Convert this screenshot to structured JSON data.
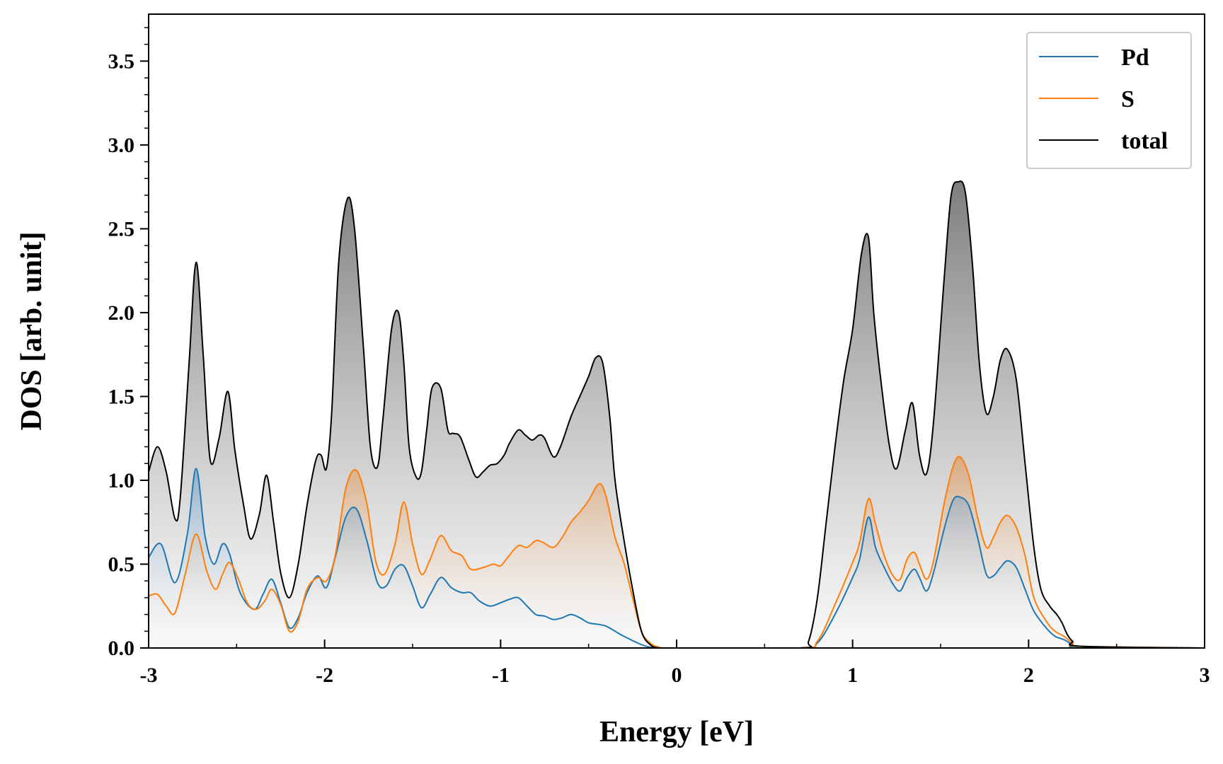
{
  "chart_data": {
    "type": "area",
    "title": "",
    "xlabel": "Energy [eV]",
    "ylabel": "DOS [arb. unit]",
    "xlim": [
      -3,
      3
    ],
    "ylim": [
      0,
      3.78
    ],
    "x_ticks": [
      -3,
      -2,
      -1,
      0,
      1,
      2,
      3
    ],
    "x_tick_labels": [
      "-3",
      "-2",
      "-1",
      "0",
      "1",
      "2",
      "3"
    ],
    "y_ticks": [
      0.0,
      0.5,
      1.0,
      1.5,
      2.0,
      2.5,
      3.0,
      3.5
    ],
    "y_tick_labels": [
      "0.0",
      "0.5",
      "1.0",
      "1.5",
      "2.0",
      "2.5",
      "3.0",
      "3.5"
    ],
    "legend_position": "top-right",
    "series": [
      {
        "name": "Pd",
        "color": "#1f77b4",
        "fill": "blue-gradient",
        "x": [
          -3.0,
          -2.93,
          -2.85,
          -2.78,
          -2.73,
          -2.68,
          -2.63,
          -2.58,
          -2.54,
          -2.48,
          -2.4,
          -2.35,
          -2.3,
          -2.25,
          -2.2,
          -2.15,
          -2.1,
          -2.04,
          -1.99,
          -1.94,
          -1.88,
          -1.82,
          -1.76,
          -1.7,
          -1.65,
          -1.6,
          -1.55,
          -1.5,
          -1.45,
          -1.4,
          -1.34,
          -1.28,
          -1.22,
          -1.17,
          -1.12,
          -1.06,
          -1.0,
          -0.95,
          -0.9,
          -0.85,
          -0.8,
          -0.75,
          -0.7,
          -0.65,
          -0.6,
          -0.55,
          -0.5,
          -0.44,
          -0.4,
          -0.35,
          -0.3,
          -0.2,
          -0.15,
          -0.1,
          0.0,
          0.7,
          0.8,
          0.9,
          1.0,
          1.04,
          1.09,
          1.13,
          1.18,
          1.23,
          1.27,
          1.31,
          1.35,
          1.38,
          1.42,
          1.46,
          1.52,
          1.57,
          1.61,
          1.66,
          1.71,
          1.76,
          1.8,
          1.84,
          1.88,
          1.93,
          1.98,
          2.03,
          2.1,
          2.15,
          2.2,
          2.25,
          2.3,
          3.0
        ],
        "values": [
          0.54,
          0.62,
          0.39,
          0.68,
          1.07,
          0.67,
          0.5,
          0.62,
          0.56,
          0.33,
          0.23,
          0.32,
          0.41,
          0.27,
          0.12,
          0.18,
          0.33,
          0.43,
          0.36,
          0.54,
          0.78,
          0.83,
          0.64,
          0.39,
          0.37,
          0.47,
          0.49,
          0.37,
          0.24,
          0.32,
          0.42,
          0.36,
          0.33,
          0.33,
          0.28,
          0.25,
          0.27,
          0.29,
          0.3,
          0.25,
          0.2,
          0.19,
          0.17,
          0.18,
          0.2,
          0.18,
          0.15,
          0.14,
          0.13,
          0.1,
          0.07,
          0.02,
          0.005,
          0.0,
          0.0,
          0.0,
          0.03,
          0.2,
          0.42,
          0.53,
          0.78,
          0.6,
          0.48,
          0.38,
          0.34,
          0.42,
          0.47,
          0.42,
          0.34,
          0.45,
          0.71,
          0.88,
          0.9,
          0.85,
          0.66,
          0.44,
          0.43,
          0.48,
          0.52,
          0.48,
          0.35,
          0.22,
          0.12,
          0.07,
          0.05,
          0.02,
          0.0,
          0.0
        ]
      },
      {
        "name": "S",
        "color": "#ff7f0e",
        "fill": "orange-gradient",
        "x": [
          -3.0,
          -2.95,
          -2.9,
          -2.85,
          -2.79,
          -2.73,
          -2.67,
          -2.62,
          -2.58,
          -2.54,
          -2.49,
          -2.44,
          -2.39,
          -2.34,
          -2.3,
          -2.25,
          -2.2,
          -2.15,
          -2.1,
          -2.04,
          -1.99,
          -1.94,
          -1.88,
          -1.82,
          -1.76,
          -1.71,
          -1.66,
          -1.6,
          -1.55,
          -1.5,
          -1.45,
          -1.4,
          -1.34,
          -1.28,
          -1.22,
          -1.17,
          -1.1,
          -1.04,
          -1.0,
          -0.96,
          -0.9,
          -0.85,
          -0.8,
          -0.76,
          -0.7,
          -0.65,
          -0.6,
          -0.55,
          -0.5,
          -0.44,
          -0.4,
          -0.35,
          -0.3,
          -0.25,
          -0.2,
          -0.15,
          -0.1,
          0.0,
          0.7,
          0.8,
          0.9,
          1.0,
          1.04,
          1.09,
          1.13,
          1.18,
          1.23,
          1.27,
          1.31,
          1.35,
          1.38,
          1.42,
          1.46,
          1.52,
          1.57,
          1.61,
          1.66,
          1.71,
          1.76,
          1.8,
          1.84,
          1.88,
          1.93,
          1.98,
          2.03,
          2.1,
          2.15,
          2.2,
          2.25,
          2.3,
          3.0
        ],
        "values": [
          0.31,
          0.32,
          0.25,
          0.21,
          0.45,
          0.68,
          0.46,
          0.35,
          0.44,
          0.51,
          0.41,
          0.27,
          0.23,
          0.28,
          0.35,
          0.26,
          0.1,
          0.16,
          0.35,
          0.42,
          0.4,
          0.55,
          0.95,
          1.06,
          0.86,
          0.52,
          0.44,
          0.62,
          0.87,
          0.62,
          0.44,
          0.53,
          0.67,
          0.58,
          0.55,
          0.47,
          0.48,
          0.5,
          0.49,
          0.54,
          0.61,
          0.6,
          0.64,
          0.63,
          0.6,
          0.66,
          0.75,
          0.81,
          0.88,
          0.98,
          0.9,
          0.66,
          0.51,
          0.3,
          0.1,
          0.03,
          0.005,
          0.0,
          0.0,
          0.04,
          0.26,
          0.51,
          0.63,
          0.89,
          0.74,
          0.55,
          0.43,
          0.41,
          0.53,
          0.57,
          0.5,
          0.41,
          0.52,
          0.86,
          1.08,
          1.14,
          1.03,
          0.78,
          0.6,
          0.66,
          0.75,
          0.79,
          0.72,
          0.55,
          0.3,
          0.16,
          0.1,
          0.07,
          0.03,
          0.01,
          0.0
        ]
      },
      {
        "name": "total",
        "color": "#000000",
        "fill": "gray-gradient",
        "x": [
          -3.0,
          -2.95,
          -2.9,
          -2.85,
          -2.82,
          -2.77,
          -2.73,
          -2.69,
          -2.65,
          -2.6,
          -2.55,
          -2.51,
          -2.46,
          -2.42,
          -2.37,
          -2.33,
          -2.29,
          -2.25,
          -2.2,
          -2.15,
          -2.1,
          -2.05,
          -2.02,
          -1.99,
          -1.96,
          -1.92,
          -1.87,
          -1.83,
          -1.78,
          -1.74,
          -1.7,
          -1.67,
          -1.62,
          -1.58,
          -1.55,
          -1.52,
          -1.48,
          -1.45,
          -1.42,
          -1.39,
          -1.34,
          -1.3,
          -1.27,
          -1.23,
          -1.18,
          -1.14,
          -1.1,
          -1.06,
          -1.02,
          -0.98,
          -0.95,
          -0.9,
          -0.86,
          -0.82,
          -0.78,
          -0.75,
          -0.7,
          -0.66,
          -0.6,
          -0.55,
          -0.5,
          -0.46,
          -0.42,
          -0.38,
          -0.35,
          -0.3,
          -0.25,
          -0.2,
          -0.15,
          -0.1,
          0.0,
          0.7,
          0.75,
          0.8,
          0.85,
          0.9,
          0.95,
          1.0,
          1.05,
          1.09,
          1.12,
          1.16,
          1.21,
          1.25,
          1.3,
          1.34,
          1.38,
          1.42,
          1.46,
          1.52,
          1.56,
          1.6,
          1.64,
          1.68,
          1.72,
          1.76,
          1.8,
          1.84,
          1.88,
          1.93,
          1.98,
          2.03,
          2.07,
          2.12,
          2.16,
          2.19,
          2.22,
          2.25,
          2.3,
          3.0
        ],
        "values": [
          1.05,
          1.2,
          1.05,
          0.77,
          0.9,
          1.7,
          2.3,
          1.75,
          1.12,
          1.25,
          1.53,
          1.18,
          0.85,
          0.65,
          0.8,
          1.03,
          0.75,
          0.45,
          0.3,
          0.5,
          0.85,
          1.12,
          1.15,
          1.07,
          1.4,
          2.3,
          2.68,
          2.5,
          1.8,
          1.2,
          1.08,
          1.35,
          1.9,
          2.0,
          1.7,
          1.2,
          1.02,
          1.05,
          1.3,
          1.55,
          1.55,
          1.3,
          1.28,
          1.26,
          1.12,
          1.02,
          1.05,
          1.09,
          1.1,
          1.15,
          1.22,
          1.3,
          1.27,
          1.24,
          1.27,
          1.25,
          1.14,
          1.2,
          1.38,
          1.5,
          1.62,
          1.73,
          1.7,
          1.38,
          1.0,
          0.65,
          0.35,
          0.1,
          0.02,
          0.0,
          0.0,
          0.0,
          0.04,
          0.3,
          0.75,
          1.2,
          1.6,
          1.9,
          2.35,
          2.45,
          2.0,
          1.6,
          1.2,
          1.07,
          1.3,
          1.46,
          1.15,
          1.04,
          1.35,
          2.2,
          2.7,
          2.78,
          2.72,
          2.3,
          1.7,
          1.4,
          1.5,
          1.72,
          1.78,
          1.6,
          1.1,
          0.6,
          0.35,
          0.25,
          0.2,
          0.15,
          0.08,
          0.04,
          0.01,
          0.0
        ]
      }
    ]
  }
}
